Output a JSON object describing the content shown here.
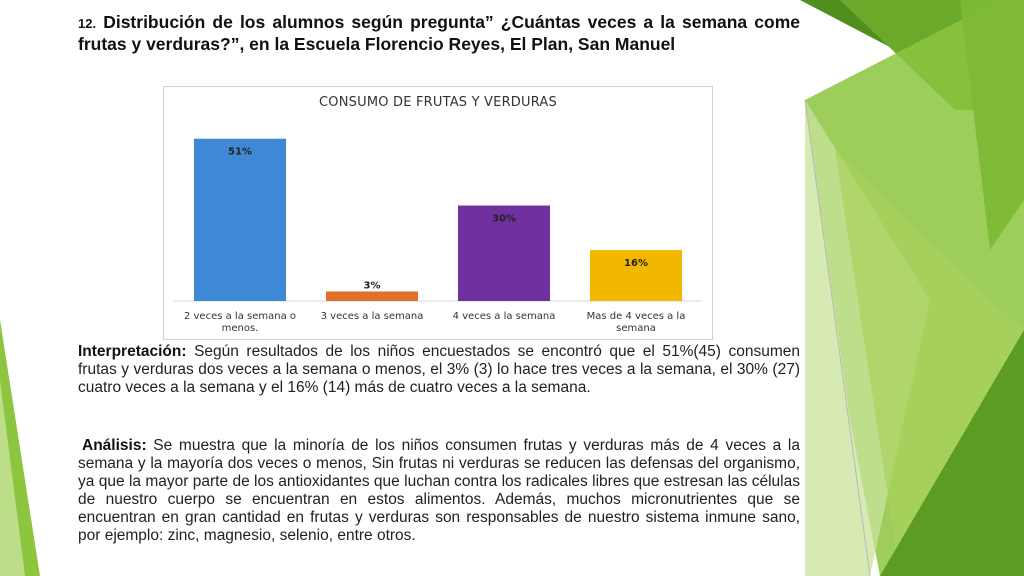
{
  "heading": {
    "number": "12.",
    "text": "Distribución de los alumnos según pregunta” ¿Cuántas veces a la semana come frutas y verduras?”, en la Escuela Florencio Reyes, El Plan, San Manuel"
  },
  "chart_data": {
    "type": "bar",
    "title": "CONSUMO DE FRUTAS Y VERDURAS",
    "categories": [
      [
        "2 veces a la semana o",
        "menos."
      ],
      [
        "3 veces a la semana"
      ],
      [
        "4 veces a la semana"
      ],
      [
        "Mas de 4 veces a la",
        "semana"
      ]
    ],
    "values": [
      51,
      3,
      30,
      16
    ],
    "labels": [
      "51%",
      "3%",
      "30%",
      "16%"
    ],
    "colors": [
      "#3f88d6",
      "#e0702a",
      "#7030a0",
      "#f2b800"
    ],
    "ylim": [
      0,
      55
    ],
    "grid": false
  },
  "interpretation": {
    "label": "Interpretación:",
    "text": "Según resultados de los niños encuestados se encontró que el 51%(45) consumen frutas y verduras dos veces a la semana o menos, el 3% (3) lo hace tres veces a la semana, el 30% (27) cuatro veces a la semana y el 16% (14) más de cuatro veces a la semana."
  },
  "analysis": {
    "label": "Análisis:",
    "text": "Se muestra que la minoría de los niños consumen frutas y verduras más de 4 veces a la semana y la mayoría dos veces o menos, Sin frutas ni verduras se reducen las defensas del organismo, ya que la mayor parte de los antioxidantes que luchan contra los radicales libres que estresan las células de nuestro cuerpo se encuentran en estos alimentos. Además, muchos micronutrientes que se encuentran en gran cantidad en frutas y verduras son responsables de nuestro sistema inmune sano, por ejemplo: zinc, magnesio, selenio, entre otros."
  },
  "theme": {
    "green_dark": "#5a9a1e",
    "green_mid": "#7cb82f",
    "green_light": "#a8d05a",
    "green_pale": "#d6ecb0"
  }
}
